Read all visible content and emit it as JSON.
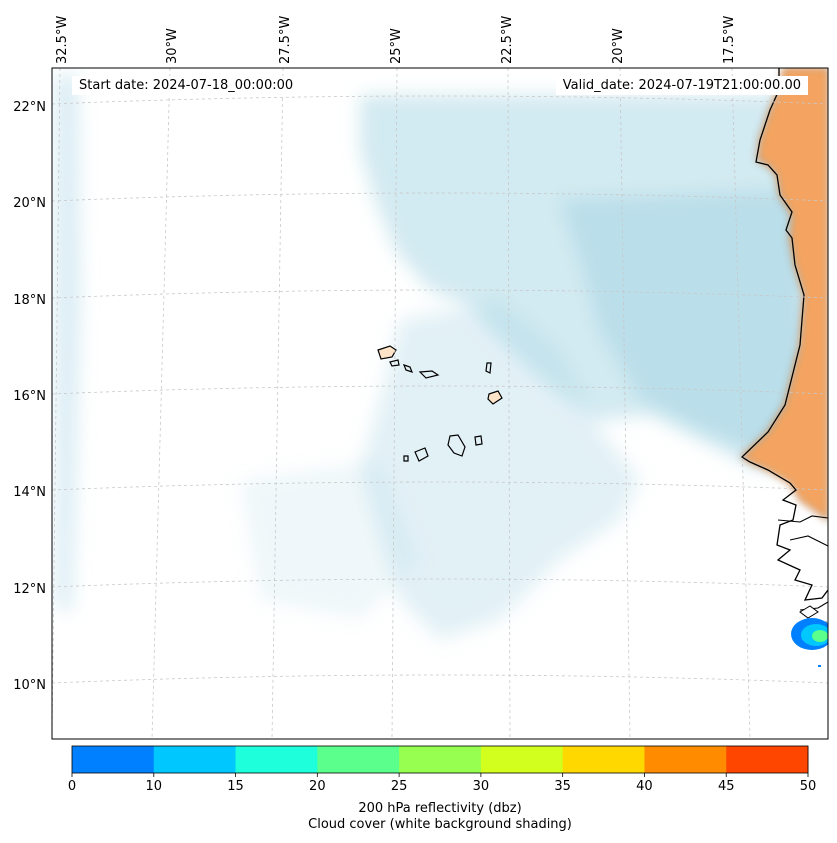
{
  "map": {
    "start_date": "Start date: 2024-07-18_00:00:00",
    "valid_date": "Valid_date: 2024-07-19T21:00:00.00",
    "longitude_labels": [
      "32.5°W",
      "30°W",
      "27.5°W",
      "25°W",
      "22.5°W",
      "20°W",
      "17.5°W"
    ],
    "latitude_labels": [
      "22°N",
      "20°N",
      "18°N",
      "16°N",
      "14°N",
      "12°N",
      "10°N"
    ],
    "land_color": "#f4a460",
    "island_fill": "#fde3c8",
    "cloud_color": "#add8e6"
  },
  "colorbar": {
    "ticks": [
      "0",
      "10",
      "15",
      "20",
      "25",
      "30",
      "35",
      "40",
      "45",
      "50"
    ],
    "colors": [
      "#0080ff",
      "#00c8ff",
      "#1effdc",
      "#5aff8c",
      "#96ff50",
      "#d2ff1e",
      "#ffd800",
      "#ff8c00",
      "#ff4600"
    ],
    "label_line1": "200 hPa reflectivity (dbz)",
    "label_line2": "Cloud cover (white background shading)"
  }
}
